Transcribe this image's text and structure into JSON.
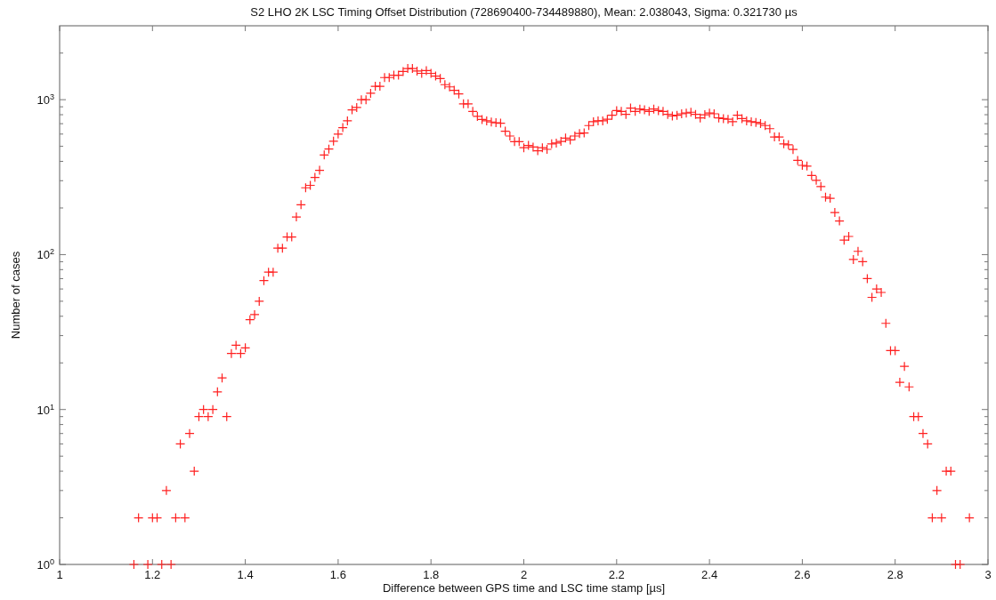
{
  "chart_data": {
    "type": "scatter",
    "title": "S2 LHO 2K LSC Timing Offset Distribution (728690400-734489880), Mean: 2.038043, Sigma: 0.321730 µs",
    "xlabel": "Difference between GPS time and LSC time stamp [µs]",
    "ylabel": "Number of cases",
    "log": "y",
    "grid": false,
    "marker": "cross",
    "xlim": [
      1,
      3
    ],
    "xticks": [
      1,
      1.2,
      1.4,
      1.6,
      1.8,
      2,
      2.2,
      2.4,
      2.6,
      2.8,
      3
    ],
    "ylim": [
      1,
      3000
    ],
    "yticks": [
      {
        "value": 1,
        "label": "10$^{0}$"
      },
      {
        "value": 2,
        "label": null
      },
      {
        "value": 3,
        "label": null
      },
      {
        "value": 4,
        "label": null
      },
      {
        "value": 5,
        "label": null
      },
      {
        "value": 6,
        "label": null
      },
      {
        "value": 7,
        "label": null
      },
      {
        "value": 8,
        "label": null
      },
      {
        "value": 9,
        "label": null
      },
      {
        "value": 10,
        "label": "10$^{1}$"
      },
      {
        "value": 20,
        "label": null
      },
      {
        "value": 30,
        "label": null
      },
      {
        "value": 40,
        "label": null
      },
      {
        "value": 50,
        "label": null
      },
      {
        "value": 60,
        "label": null
      },
      {
        "value": 70,
        "label": null
      },
      {
        "value": 80,
        "label": null
      },
      {
        "value": 90,
        "label": null
      },
      {
        "value": 100,
        "label": "10$^{2}$"
      },
      {
        "value": 200,
        "label": null
      },
      {
        "value": 300,
        "label": null
      },
      {
        "value": 400,
        "label": null
      },
      {
        "value": 500,
        "label": null
      },
      {
        "value": 600,
        "label": null
      },
      {
        "value": 700,
        "label": null
      },
      {
        "value": 800,
        "label": null
      },
      {
        "value": 900,
        "label": null
      },
      {
        "value": 1000,
        "label": "10$^{3}$"
      },
      {
        "value": 2000,
        "label": null
      }
    ],
    "series": [
      {
        "color": "#ff2020",
        "x": [
          1.16,
          1.17,
          1.19,
          1.2,
          1.21,
          1.22,
          1.23,
          1.24,
          1.25,
          1.26,
          1.27,
          1.28,
          1.29,
          1.3,
          1.31,
          1.32,
          1.33,
          1.34,
          1.35,
          1.36,
          1.37,
          1.38,
          1.39,
          1.4,
          1.41,
          1.42,
          1.43,
          1.44,
          1.45,
          1.46,
          1.47,
          1.48,
          1.49,
          1.5,
          1.51,
          1.52,
          1.53,
          1.54,
          1.55,
          1.56,
          1.57,
          1.58,
          1.59,
          1.6,
          1.61,
          1.62,
          1.63,
          1.64,
          1.65,
          1.66,
          1.67,
          1.68,
          1.69,
          1.7,
          1.71,
          1.72,
          1.73,
          1.74,
          1.75,
          1.76,
          1.77,
          1.78,
          1.79,
          1.8,
          1.81,
          1.82,
          1.83,
          1.84,
          1.85,
          1.86,
          1.87,
          1.88,
          1.89,
          1.9,
          1.91,
          1.92,
          1.93,
          1.94,
          1.95,
          1.96,
          1.97,
          1.98,
          1.99,
          2,
          2.01,
          2.02,
          2.03,
          2.04,
          2.05,
          2.06,
          2.07,
          2.08,
          2.09,
          2.1,
          2.11,
          2.12,
          2.13,
          2.14,
          2.15,
          2.16,
          2.17,
          2.18,
          2.19,
          2.2,
          2.21,
          2.22,
          2.23,
          2.24,
          2.25,
          2.26,
          2.27,
          2.28,
          2.29,
          2.3,
          2.31,
          2.32,
          2.33,
          2.34,
          2.35,
          2.36,
          2.37,
          2.38,
          2.39,
          2.4,
          2.41,
          2.42,
          2.43,
          2.44,
          2.45,
          2.46,
          2.47,
          2.48,
          2.49,
          2.5,
          2.51,
          2.52,
          2.53,
          2.54,
          2.55,
          2.56,
          2.57,
          2.58,
          2.59,
          2.6,
          2.61,
          2.62,
          2.63,
          2.64,
          2.65,
          2.66,
          2.67,
          2.68,
          2.69,
          2.7,
          2.71,
          2.72,
          2.73,
          2.74,
          2.75,
          2.76,
          2.77,
          2.78,
          2.79,
          2.8,
          2.81,
          2.82,
          2.83,
          2.84,
          2.85,
          2.86,
          2.87,
          2.88,
          2.89,
          2.9,
          2.91,
          2.92,
          2.93,
          2.94,
          2.96
        ],
        "values": [
          1,
          2,
          1,
          2,
          2,
          1,
          3,
          1,
          2,
          6,
          2,
          7,
          4,
          9,
          10,
          9,
          10,
          13,
          16,
          9,
          23,
          26,
          23,
          25,
          38,
          41,
          50,
          68,
          77,
          77,
          110,
          110,
          130,
          130,
          175,
          210,
          270,
          280,
          315,
          350,
          440,
          480,
          540,
          600,
          660,
          730,
          860,
          890,
          1000,
          1000,
          1100,
          1220,
          1220,
          1390,
          1390,
          1440,
          1440,
          1520,
          1590,
          1590,
          1530,
          1480,
          1540,
          1480,
          1420,
          1370,
          1250,
          1210,
          1150,
          1090,
          940,
          940,
          840,
          780,
          745,
          730,
          718,
          710,
          705,
          626,
          583,
          536,
          536,
          490,
          507,
          495,
          468,
          490,
          478,
          519,
          525,
          538,
          565,
          550,
          583,
          605,
          610,
          681,
          721,
          730,
          730,
          748,
          793,
          850,
          840,
          804,
          883,
          840,
          870,
          860,
          840,
          870,
          850,
          840,
          804,
          785,
          793,
          811,
          820,
          830,
          804,
          763,
          800,
          820,
          811,
          763,
          755,
          748,
          721,
          793,
          755,
          730,
          721,
          714,
          701,
          681,
          650,
          575,
          575,
          519,
          512,
          477,
          406,
          377,
          373,
          324,
          302,
          275,
          235,
          231,
          187,
          165,
          124,
          131,
          93,
          105,
          90,
          70,
          53,
          60,
          57,
          36,
          24,
          24,
          15,
          19,
          14,
          9,
          9,
          7,
          6,
          2,
          3,
          2,
          4,
          4,
          1,
          1,
          2
        ]
      }
    ]
  }
}
